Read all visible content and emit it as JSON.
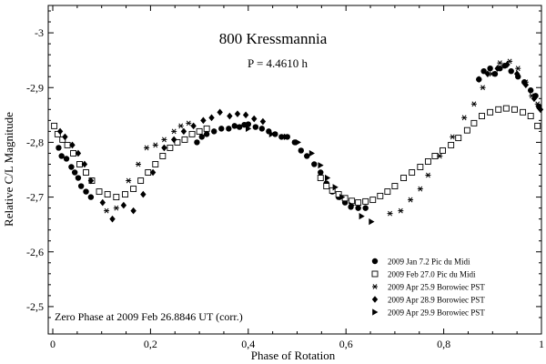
{
  "chart_data": {
    "type": "scatter",
    "title": "800 Kressmannia",
    "subtitle": "P = 4.4610 h",
    "annotation": "Zero Phase at 2009 Feb 26.8846 UT (corr.)",
    "xlabel": "Phase of Rotation",
    "ylabel": "Relative C/L Magnitude",
    "xlim": [
      0,
      1
    ],
    "ylim": [
      -2.45,
      -3.05
    ],
    "y_inverted": true,
    "x_ticks": [
      0,
      0.2,
      0.4,
      0.6,
      0.8,
      1
    ],
    "x_tick_labels": [
      "0",
      "0,2",
      "0,4",
      "0,6",
      "0,8",
      "1"
    ],
    "y_ticks": [
      -3.0,
      -2.9,
      -2.8,
      -2.7,
      -2.6,
      -2.5
    ],
    "y_tick_labels": [
      "-3",
      "-2,9",
      "-2,8",
      "-2,7",
      "-2,6",
      "-2,5"
    ],
    "legend_position": "bottom-right",
    "series": [
      {
        "name": "2009 Jan 7.2 Pic du Midi",
        "marker": "filled-circle",
        "points": [
          [
            0.012,
            -2.79
          ],
          [
            0.018,
            -2.775
          ],
          [
            0.028,
            -2.77
          ],
          [
            0.038,
            -2.755
          ],
          [
            0.045,
            -2.745
          ],
          [
            0.052,
            -2.735
          ],
          [
            0.058,
            -2.72
          ],
          [
            0.068,
            -2.71
          ],
          [
            0.078,
            -2.7
          ],
          [
            0.295,
            -2.8
          ],
          [
            0.305,
            -2.81
          ],
          [
            0.315,
            -2.815
          ],
          [
            0.33,
            -2.82
          ],
          [
            0.345,
            -2.825
          ],
          [
            0.36,
            -2.825
          ],
          [
            0.372,
            -2.83
          ],
          [
            0.382,
            -2.828
          ],
          [
            0.392,
            -2.832
          ],
          [
            0.4,
            -2.833
          ],
          [
            0.415,
            -2.828
          ],
          [
            0.428,
            -2.825
          ],
          [
            0.442,
            -2.82
          ],
          [
            0.455,
            -2.815
          ],
          [
            0.468,
            -2.81
          ],
          [
            0.48,
            -2.81
          ],
          [
            0.495,
            -2.8
          ],
          [
            0.508,
            -2.785
          ],
          [
            0.52,
            -2.775
          ],
          [
            0.535,
            -2.76
          ],
          [
            0.548,
            -2.745
          ],
          [
            0.56,
            -2.725
          ],
          [
            0.572,
            -2.71
          ],
          [
            0.585,
            -2.7
          ],
          [
            0.598,
            -2.69
          ],
          [
            0.61,
            -2.682
          ],
          [
            0.625,
            -2.68
          ],
          [
            0.64,
            -2.68
          ],
          [
            0.872,
            -2.915
          ],
          [
            0.882,
            -2.93
          ],
          [
            0.895,
            -2.935
          ],
          [
            0.905,
            -2.925
          ],
          [
            0.915,
            -2.935
          ],
          [
            0.925,
            -2.94
          ],
          [
            0.938,
            -2.93
          ],
          [
            0.952,
            -2.92
          ],
          [
            0.965,
            -2.91
          ],
          [
            0.978,
            -2.895
          ],
          [
            0.988,
            -2.885
          ],
          [
            0.995,
            -2.865
          ]
        ]
      },
      {
        "name": "2009 Feb 27.0 Pic du Midi",
        "marker": "open-square",
        "points": [
          [
            0.003,
            -2.83
          ],
          [
            0.01,
            -2.815
          ],
          [
            0.02,
            -2.805
          ],
          [
            0.03,
            -2.795
          ],
          [
            0.042,
            -2.78
          ],
          [
            0.055,
            -2.76
          ],
          [
            0.068,
            -2.745
          ],
          [
            0.08,
            -2.73
          ],
          [
            0.095,
            -2.71
          ],
          [
            0.112,
            -2.705
          ],
          [
            0.13,
            -2.7
          ],
          [
            0.148,
            -2.705
          ],
          [
            0.165,
            -2.715
          ],
          [
            0.18,
            -2.73
          ],
          [
            0.195,
            -2.745
          ],
          [
            0.21,
            -2.76
          ],
          [
            0.225,
            -2.775
          ],
          [
            0.24,
            -2.79
          ],
          [
            0.255,
            -2.8
          ],
          [
            0.27,
            -2.805
          ],
          [
            0.285,
            -2.815
          ],
          [
            0.3,
            -2.82
          ],
          [
            0.315,
            -2.825
          ],
          [
            0.548,
            -2.735
          ],
          [
            0.56,
            -2.72
          ],
          [
            0.572,
            -2.712
          ],
          [
            0.585,
            -2.705
          ],
          [
            0.598,
            -2.698
          ],
          [
            0.612,
            -2.693
          ],
          [
            0.625,
            -2.69
          ],
          [
            0.64,
            -2.692
          ],
          [
            0.655,
            -2.695
          ],
          [
            0.67,
            -2.702
          ],
          [
            0.685,
            -2.71
          ],
          [
            0.7,
            -2.72
          ],
          [
            0.718,
            -2.735
          ],
          [
            0.735,
            -2.745
          ],
          [
            0.752,
            -2.755
          ],
          [
            0.768,
            -2.765
          ],
          [
            0.782,
            -2.775
          ],
          [
            0.798,
            -2.785
          ],
          [
            0.815,
            -2.795
          ],
          [
            0.83,
            -2.808
          ],
          [
            0.848,
            -2.822
          ],
          [
            0.862,
            -2.835
          ],
          [
            0.878,
            -2.848
          ],
          [
            0.895,
            -2.855
          ],
          [
            0.912,
            -2.86
          ],
          [
            0.928,
            -2.862
          ],
          [
            0.945,
            -2.86
          ],
          [
            0.962,
            -2.855
          ],
          [
            0.978,
            -2.848
          ],
          [
            0.992,
            -2.83
          ]
        ]
      },
      {
        "name": "2009 Apr 25.9 Borowiec PST",
        "marker": "asterisk",
        "points": [
          [
            0.11,
            -2.675
          ],
          [
            0.13,
            -2.68
          ],
          [
            0.155,
            -2.73
          ],
          [
            0.175,
            -2.76
          ],
          [
            0.192,
            -2.79
          ],
          [
            0.21,
            -2.795
          ],
          [
            0.228,
            -2.805
          ],
          [
            0.248,
            -2.82
          ],
          [
            0.262,
            -2.83
          ],
          [
            0.278,
            -2.835
          ],
          [
            0.69,
            -2.67
          ],
          [
            0.712,
            -2.675
          ],
          [
            0.732,
            -2.695
          ],
          [
            0.752,
            -2.715
          ],
          [
            0.768,
            -2.74
          ],
          [
            0.792,
            -2.775
          ],
          [
            0.818,
            -2.81
          ],
          [
            0.842,
            -2.845
          ],
          [
            0.862,
            -2.87
          ],
          [
            0.88,
            -2.9
          ],
          [
            0.898,
            -2.925
          ],
          [
            0.915,
            -2.945
          ],
          [
            0.935,
            -2.948
          ],
          [
            0.952,
            -2.935
          ],
          [
            0.968,
            -2.91
          ],
          [
            0.98,
            -2.885
          ],
          [
            0.992,
            -2.87
          ]
        ]
      },
      {
        "name": "2009 Apr 28.9 Borowiec PST",
        "marker": "filled-diamond",
        "points": [
          [
            0.015,
            -2.82
          ],
          [
            0.025,
            -2.81
          ],
          [
            0.04,
            -2.795
          ],
          [
            0.052,
            -2.78
          ],
          [
            0.065,
            -2.76
          ],
          [
            0.078,
            -2.73
          ],
          [
            0.102,
            -2.69
          ],
          [
            0.122,
            -2.66
          ],
          [
            0.145,
            -2.685
          ],
          [
            0.165,
            -2.675
          ],
          [
            0.185,
            -2.705
          ],
          [
            0.205,
            -2.745
          ],
          [
            0.228,
            -2.79
          ],
          [
            0.248,
            -2.805
          ],
          [
            0.268,
            -2.82
          ],
          [
            0.288,
            -2.83
          ],
          [
            0.308,
            -2.84
          ],
          [
            0.325,
            -2.845
          ],
          [
            0.342,
            -2.855
          ],
          [
            0.362,
            -2.848
          ],
          [
            0.378,
            -2.852
          ],
          [
            0.395,
            -2.85
          ],
          [
            0.412,
            -2.843
          ],
          [
            0.43,
            -2.838
          ],
          [
            0.872,
            -2.915
          ],
          [
            0.89,
            -2.925
          ],
          [
            0.91,
            -2.935
          ],
          [
            0.93,
            -2.942
          ],
          [
            0.95,
            -2.925
          ],
          [
            0.968,
            -2.905
          ],
          [
            0.985,
            -2.88
          ],
          [
            0.998,
            -2.86
          ]
        ]
      },
      {
        "name": "2009 Apr 29.9 Borowiec PST",
        "marker": "filled-triangle-right",
        "points": [
          [
            0.4,
            -2.825
          ],
          [
            0.448,
            -2.815
          ],
          [
            0.478,
            -2.81
          ],
          [
            0.502,
            -2.8
          ],
          [
            0.53,
            -2.78
          ],
          [
            0.548,
            -2.758
          ],
          [
            0.562,
            -2.735
          ],
          [
            0.578,
            -2.718
          ],
          [
            0.592,
            -2.7
          ],
          [
            0.612,
            -2.685
          ],
          [
            0.632,
            -2.665
          ],
          [
            0.652,
            -2.655
          ]
        ]
      }
    ]
  }
}
